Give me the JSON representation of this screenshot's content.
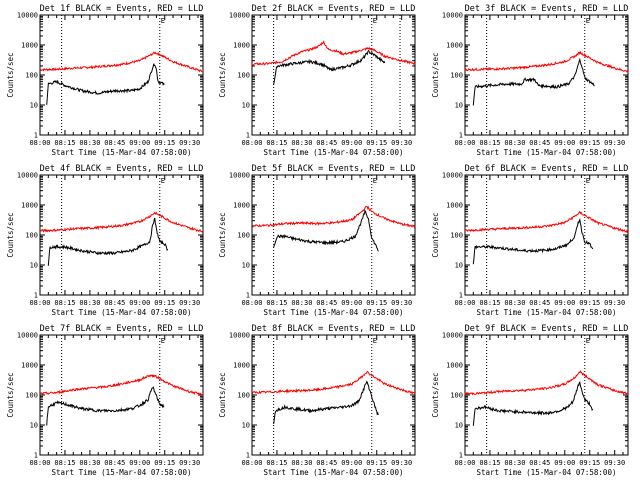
{
  "chart_data": {
    "type": "line",
    "panels": [
      {
        "title": "Det 1f BLACK = Events, RED = LLD",
        "dotted_x": [
          "08:13",
          "09:12"
        ],
        "corner_mark": "E",
        "corner_mark_x": "09:12"
      },
      {
        "title": "Det 2f BLACK = Events, RED = LLD",
        "dotted_x": [
          "08:13",
          "09:12",
          "09:29"
        ],
        "corner_mark": "E",
        "corner_mark_x": "09:12"
      },
      {
        "title": "Det 3f BLACK = Events, RED = LLD",
        "dotted_x": [
          "08:13",
          "09:12"
        ],
        "corner_mark": "E",
        "corner_mark_x": "09:12"
      },
      {
        "title": "Det 4f BLACK = Events, RED = LLD",
        "dotted_x": [
          "08:13",
          "09:12"
        ],
        "corner_mark": "E",
        "corner_mark_x": "09:12"
      },
      {
        "title": "Det 5f BLACK = Events, RED = LLD",
        "dotted_x": [
          "08:13",
          "09:12"
        ],
        "corner_mark": "E",
        "corner_mark_x": "09:12"
      },
      {
        "title": "Det 6f BLACK = Events, RED = LLD",
        "dotted_x": [
          "08:13",
          "09:12"
        ],
        "corner_mark": "E",
        "corner_mark_x": "09:12"
      },
      {
        "title": "Det 7f BLACK = Events, RED = LLD",
        "dotted_x": [
          "08:13",
          "09:12"
        ],
        "corner_mark": "E",
        "corner_mark_x": "09:12"
      },
      {
        "title": "Det 8f BLACK = Events, RED = LLD",
        "dotted_x": [
          "08:13",
          "09:12"
        ],
        "corner_mark": "E",
        "corner_mark_x": "09:12"
      },
      {
        "title": "Det 9f BLACK = Events, RED = LLD",
        "dotted_x": [
          "08:13",
          "09:12"
        ],
        "corner_mark": "E",
        "corner_mark_x": "09:12"
      }
    ],
    "xlabel": "Start Time (15-Mar-04 07:58:00)",
    "ylabel": "Counts/sec",
    "x_ticks": [
      "08:00",
      "08:15",
      "08:30",
      "08:45",
      "09:00",
      "09:15",
      "09:30"
    ],
    "xlim": [
      "08:00",
      "09:38"
    ],
    "y_scale": "log",
    "y_ticks": [
      "1",
      "10",
      "100",
      "1000",
      "10000"
    ],
    "ylim": [
      1,
      10000
    ],
    "series_colors": {
      "red": "#ff0000",
      "black": "#000000"
    },
    "red_series": [
      [
        [
          "08:00",
          150
        ],
        [
          "08:10",
          155
        ],
        [
          "08:20",
          170
        ],
        [
          "08:30",
          180
        ],
        [
          "08:40",
          200
        ],
        [
          "08:50",
          230
        ],
        [
          "09:00",
          300
        ],
        [
          "09:06",
          450
        ],
        [
          "09:09",
          560
        ],
        [
          "09:12",
          480
        ],
        [
          "09:20",
          280
        ],
        [
          "09:30",
          180
        ],
        [
          "09:38",
          130
        ]
      ],
      [
        [
          "08:00",
          230
        ],
        [
          "08:10",
          240
        ],
        [
          "08:18",
          280
        ],
        [
          "08:25",
          450
        ],
        [
          "08:30",
          600
        ],
        [
          "08:35",
          700
        ],
        [
          "08:40",
          900
        ],
        [
          "08:43",
          1250
        ],
        [
          "08:46",
          700
        ],
        [
          "08:50",
          650
        ],
        [
          "08:55",
          500
        ],
        [
          "09:00",
          550
        ],
        [
          "09:07",
          700
        ],
        [
          "09:10",
          780
        ],
        [
          "09:14",
          650
        ],
        [
          "09:20",
          420
        ],
        [
          "09:30",
          300
        ],
        [
          "09:38",
          240
        ]
      ],
      [
        [
          "08:00",
          150
        ],
        [
          "08:10",
          155
        ],
        [
          "08:20",
          160
        ],
        [
          "08:30",
          170
        ],
        [
          "08:40",
          190
        ],
        [
          "08:50",
          220
        ],
        [
          "09:00",
          280
        ],
        [
          "09:06",
          420
        ],
        [
          "09:09",
          560
        ],
        [
          "09:12",
          460
        ],
        [
          "09:20",
          260
        ],
        [
          "09:30",
          170
        ],
        [
          "09:38",
          130
        ]
      ],
      [
        [
          "08:00",
          140
        ],
        [
          "08:10",
          145
        ],
        [
          "08:20",
          160
        ],
        [
          "08:30",
          170
        ],
        [
          "08:40",
          185
        ],
        [
          "08:50",
          210
        ],
        [
          "09:00",
          280
        ],
        [
          "09:06",
          420
        ],
        [
          "09:09",
          550
        ],
        [
          "09:12",
          450
        ],
        [
          "09:20",
          260
        ],
        [
          "09:30",
          170
        ],
        [
          "09:38",
          130
        ]
      ],
      [
        [
          "08:00",
          200
        ],
        [
          "08:10",
          210
        ],
        [
          "08:20",
          240
        ],
        [
          "08:30",
          250
        ],
        [
          "08:40",
          240
        ],
        [
          "08:50",
          260
        ],
        [
          "09:00",
          320
        ],
        [
          "09:06",
          600
        ],
        [
          "09:09",
          900
        ],
        [
          "09:12",
          600
        ],
        [
          "09:20",
          350
        ],
        [
          "09:30",
          230
        ],
        [
          "09:38",
          190
        ]
      ],
      [
        [
          "08:00",
          140
        ],
        [
          "08:10",
          150
        ],
        [
          "08:20",
          160
        ],
        [
          "08:30",
          170
        ],
        [
          "08:40",
          180
        ],
        [
          "08:50",
          200
        ],
        [
          "09:00",
          260
        ],
        [
          "09:06",
          420
        ],
        [
          "09:09",
          560
        ],
        [
          "09:12",
          450
        ],
        [
          "09:20",
          250
        ],
        [
          "09:30",
          170
        ],
        [
          "09:38",
          130
        ]
      ],
      [
        [
          "08:00",
          110
        ],
        [
          "08:10",
          120
        ],
        [
          "08:20",
          150
        ],
        [
          "08:30",
          170
        ],
        [
          "08:40",
          190
        ],
        [
          "08:50",
          240
        ],
        [
          "09:00",
          320
        ],
        [
          "09:06",
          450
        ],
        [
          "09:09",
          430
        ],
        [
          "09:12",
          350
        ],
        [
          "09:20",
          200
        ],
        [
          "09:30",
          130
        ],
        [
          "09:38",
          100
        ]
      ],
      [
        [
          "08:00",
          120
        ],
        [
          "08:10",
          125
        ],
        [
          "08:20",
          135
        ],
        [
          "08:30",
          140
        ],
        [
          "08:40",
          150
        ],
        [
          "08:50",
          180
        ],
        [
          "09:00",
          230
        ],
        [
          "09:06",
          400
        ],
        [
          "09:09",
          600
        ],
        [
          "09:12",
          450
        ],
        [
          "09:20",
          230
        ],
        [
          "09:30",
          150
        ],
        [
          "09:38",
          110
        ]
      ],
      [
        [
          "08:00",
          110
        ],
        [
          "08:10",
          115
        ],
        [
          "08:20",
          130
        ],
        [
          "08:30",
          140
        ],
        [
          "08:40",
          150
        ],
        [
          "08:50",
          170
        ],
        [
          "09:00",
          230
        ],
        [
          "09:06",
          380
        ],
        [
          "09:09",
          600
        ],
        [
          "09:12",
          450
        ],
        [
          "09:20",
          220
        ],
        [
          "09:30",
          140
        ],
        [
          "09:38",
          110
        ]
      ]
    ],
    "black_series": [
      [
        [
          "08:04",
          10
        ],
        [
          "08:05",
          50
        ],
        [
          "08:10",
          60
        ],
        [
          "08:15",
          45
        ],
        [
          "08:25",
          30
        ],
        [
          "08:35",
          25
        ],
        [
          "08:45",
          30
        ],
        [
          "08:55",
          30
        ],
        [
          "09:00",
          35
        ],
        [
          "09:05",
          60
        ],
        [
          "09:08",
          200
        ],
        [
          "09:09",
          240
        ],
        [
          "09:10",
          150
        ],
        [
          "09:11",
          60
        ],
        [
          "09:13",
          55
        ],
        [
          "09:15",
          45
        ]
      ],
      [
        [
          "08:13",
          50
        ],
        [
          "08:15",
          200
        ],
        [
          "08:25",
          240
        ],
        [
          "08:35",
          280
        ],
        [
          "08:42",
          230
        ],
        [
          "08:47",
          150
        ],
        [
          "08:55",
          180
        ],
        [
          "09:00",
          220
        ],
        [
          "09:06",
          320
        ],
        [
          "09:10",
          600
        ],
        [
          "09:14",
          450
        ],
        [
          "09:18",
          300
        ],
        [
          "09:20",
          250
        ]
      ],
      [
        [
          "08:05",
          10
        ],
        [
          "08:06",
          40
        ],
        [
          "08:15",
          45
        ],
        [
          "08:25",
          50
        ],
        [
          "08:34",
          50
        ],
        [
          "08:36",
          70
        ],
        [
          "08:42",
          70
        ],
        [
          "08:44",
          45
        ],
        [
          "08:55",
          40
        ],
        [
          "09:02",
          50
        ],
        [
          "09:06",
          90
        ],
        [
          "09:09",
          320
        ],
        [
          "09:10",
          230
        ],
        [
          "09:12",
          80
        ],
        [
          "09:15",
          60
        ],
        [
          "09:18",
          45
        ]
      ],
      [
        [
          "08:05",
          10
        ],
        [
          "08:06",
          40
        ],
        [
          "08:15",
          40
        ],
        [
          "08:25",
          30
        ],
        [
          "08:35",
          25
        ],
        [
          "08:45",
          25
        ],
        [
          "08:55",
          30
        ],
        [
          "09:02",
          45
        ],
        [
          "09:06",
          60
        ],
        [
          "09:08",
          250
        ],
        [
          "09:09",
          350
        ],
        [
          "09:10",
          150
        ],
        [
          "09:12",
          60
        ],
        [
          "09:15",
          50
        ],
        [
          "09:17",
          30
        ]
      ],
      [
        [
          "08:13",
          40
        ],
        [
          "08:15",
          90
        ],
        [
          "08:20",
          90
        ],
        [
          "08:25",
          75
        ],
        [
          "08:35",
          60
        ],
        [
          "08:45",
          55
        ],
        [
          "08:55",
          60
        ],
        [
          "09:02",
          90
        ],
        [
          "09:06",
          300
        ],
        [
          "09:08",
          600
        ],
        [
          "09:10",
          350
        ],
        [
          "09:12",
          80
        ],
        [
          "09:14",
          50
        ],
        [
          "09:16",
          30
        ]
      ],
      [
        [
          "08:05",
          10
        ],
        [
          "08:06",
          40
        ],
        [
          "08:15",
          40
        ],
        [
          "08:25",
          35
        ],
        [
          "08:35",
          30
        ],
        [
          "08:45",
          30
        ],
        [
          "08:55",
          35
        ],
        [
          "09:02",
          50
        ],
        [
          "09:06",
          90
        ],
        [
          "09:08",
          250
        ],
        [
          "09:09",
          350
        ],
        [
          "09:10",
          150
        ],
        [
          "09:12",
          60
        ],
        [
          "09:15",
          50
        ],
        [
          "09:17",
          30
        ]
      ],
      [
        [
          "08:04",
          10
        ],
        [
          "08:05",
          40
        ],
        [
          "08:10",
          55
        ],
        [
          "08:15",
          50
        ],
        [
          "08:25",
          35
        ],
        [
          "08:35",
          30
        ],
        [
          "08:45",
          30
        ],
        [
          "08:55",
          35
        ],
        [
          "09:00",
          45
        ],
        [
          "09:05",
          70
        ],
        [
          "09:07",
          150
        ],
        [
          "09:08",
          180
        ],
        [
          "09:10",
          90
        ],
        [
          "09:12",
          50
        ],
        [
          "09:15",
          40
        ]
      ],
      [
        [
          "08:13",
          10
        ],
        [
          "08:14",
          30
        ],
        [
          "08:20",
          40
        ],
        [
          "08:25",
          35
        ],
        [
          "08:35",
          30
        ],
        [
          "08:45",
          35
        ],
        [
          "08:55",
          40
        ],
        [
          "09:00",
          45
        ],
        [
          "09:04",
          60
        ],
        [
          "09:07",
          150
        ],
        [
          "09:09",
          280
        ],
        [
          "09:10",
          200
        ],
        [
          "09:12",
          90
        ],
        [
          "09:14",
          40
        ],
        [
          "09:16",
          20
        ]
      ],
      [
        [
          "08:05",
          10
        ],
        [
          "08:06",
          35
        ],
        [
          "08:12",
          40
        ],
        [
          "08:20",
          30
        ],
        [
          "08:30",
          28
        ],
        [
          "08:40",
          26
        ],
        [
          "08:50",
          25
        ],
        [
          "08:57",
          30
        ],
        [
          "09:02",
          40
        ],
        [
          "09:05",
          60
        ],
        [
          "09:08",
          200
        ],
        [
          "09:09",
          280
        ],
        [
          "09:10",
          150
        ],
        [
          "09:12",
          70
        ],
        [
          "09:15",
          50
        ],
        [
          "09:17",
          30
        ]
      ]
    ]
  }
}
